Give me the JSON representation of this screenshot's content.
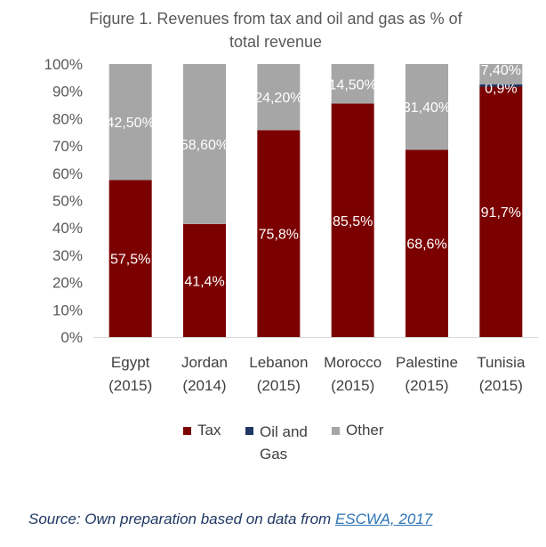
{
  "chart_data": {
    "type": "bar",
    "stacked": true,
    "title": "Figure 1. Revenues from tax and oil and gas as % of total revenue",
    "title_lines": [
      "Figure 1. Revenues from tax and oil and gas as % of",
      "total revenue"
    ],
    "categories": [
      "Egypt (2015)",
      "Jordan (2014)",
      "Lebanon (2015)",
      "Morocco (2015)",
      "Palestine (2015)",
      "Tunisia (2015)"
    ],
    "category_lines": [
      [
        "Egypt",
        "(2015)"
      ],
      [
        "Jordan",
        "(2014)"
      ],
      [
        "Lebanon",
        "(2015)"
      ],
      [
        "Morocco",
        "(2015)"
      ],
      [
        "Palestine",
        "(2015)"
      ],
      [
        "Tunisia",
        "(2015)"
      ]
    ],
    "ylim": [
      0,
      100
    ],
    "yticks": [
      "0%",
      "10%",
      "20%",
      "30%",
      "40%",
      "50%",
      "60%",
      "70%",
      "80%",
      "90%",
      "100%"
    ],
    "series": [
      {
        "name": "Tax",
        "color": "#7b0000",
        "values": [
          57.5,
          41.4,
          75.8,
          85.5,
          68.6,
          91.7
        ],
        "labels": [
          "57,5%",
          "41,4%",
          "75,8%",
          "85,5%",
          "68,6%",
          "91,7%"
        ]
      },
      {
        "name": "Oil and Gas",
        "color": "#1f3864",
        "values": [
          0,
          0,
          0,
          0,
          0,
          0.9
        ],
        "labels": [
          "",
          "",
          "",
          "",
          "",
          "0,9%"
        ]
      },
      {
        "name": "Other",
        "color": "#a6a6a6",
        "values": [
          42.5,
          58.6,
          24.2,
          14.5,
          31.4,
          7.4
        ],
        "labels": [
          "42,50%",
          "58,60%",
          "24,20%",
          "14,50%",
          "31,40%",
          "7,40%"
        ]
      }
    ],
    "legend_position": "bottom",
    "legend": [
      "Tax",
      "Oil and Gas",
      "Other"
    ]
  },
  "source": {
    "prefix": "Source: Own preparation based on data from ",
    "link_text": "ESCWA, 2017"
  }
}
